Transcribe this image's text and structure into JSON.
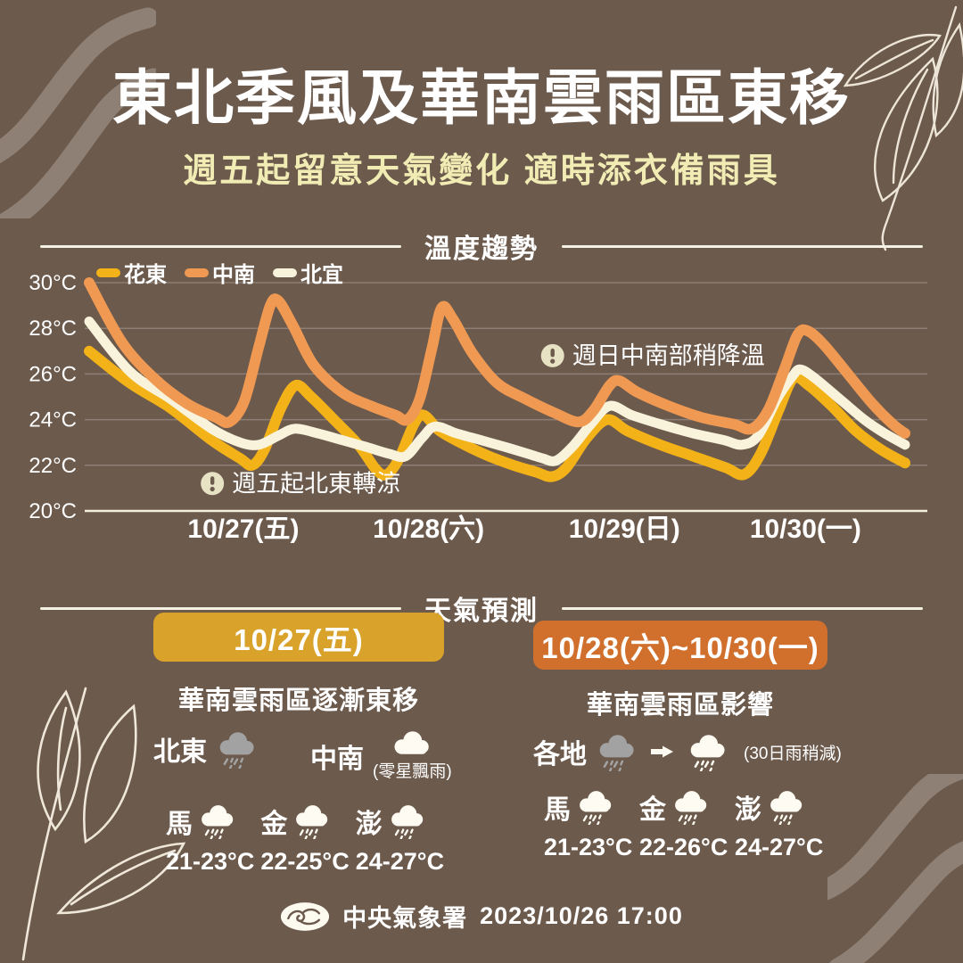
{
  "colors": {
    "background": "#6C5A4D",
    "title_text": "#FFFFFF",
    "subtitle_text": "#F1ECB4",
    "badge_friday": "#D8A22B",
    "badge_weekend": "#D0702C",
    "series_huadong": "#F3B218",
    "series_zhongnan": "#EF9952",
    "series_beiyi": "#F8F3DA",
    "cloud_gray": "#A2A2A2",
    "cloud_white": "#FDFBF2",
    "annotation_badge": "#E7E2C3"
  },
  "header": {
    "title": "東北季風及華南雲雨區東移",
    "subtitle": "週五起留意天氣變化 適時添衣備雨具"
  },
  "chart_data": {
    "type": "line",
    "title": "溫度趨勢",
    "ylabel": "°C",
    "ylim": [
      20,
      30
    ],
    "grid": true,
    "legend_position": "top-left",
    "yticks": [
      {
        "label": "30°C",
        "value": 30
      },
      {
        "label": "28°C",
        "value": 28
      },
      {
        "label": "26°C",
        "value": 26
      },
      {
        "label": "24°C",
        "value": 24
      },
      {
        "label": "22°C",
        "value": 22
      },
      {
        "label": "20°C",
        "value": 20
      }
    ],
    "x_labels": [
      {
        "label": "10/27(五)",
        "pos": 0.189
      },
      {
        "label": "10/28(六)",
        "pos": 0.416
      },
      {
        "label": "10/29(日)",
        "pos": 0.656
      },
      {
        "label": "10/30(一)",
        "pos": 0.878
      }
    ],
    "legend": [
      {
        "label": "花東",
        "color": "#F3B218"
      },
      {
        "label": "中南",
        "color": "#EF9952"
      },
      {
        "label": "北宜",
        "color": "#F8F3DA"
      }
    ],
    "series": [
      {
        "name": "花東",
        "color": "#F3B218",
        "width": 12,
        "points": [
          [
            0.0,
            27.0
          ],
          [
            0.05,
            25.6
          ],
          [
            0.1,
            24.5
          ],
          [
            0.15,
            23.1
          ],
          [
            0.185,
            22.3
          ],
          [
            0.2,
            22.0
          ],
          [
            0.215,
            22.7
          ],
          [
            0.235,
            24.5
          ],
          [
            0.253,
            25.5
          ],
          [
            0.272,
            25.0
          ],
          [
            0.3,
            24.0
          ],
          [
            0.33,
            22.9
          ],
          [
            0.352,
            21.8
          ],
          [
            0.365,
            21.6
          ],
          [
            0.38,
            22.3
          ],
          [
            0.398,
            23.8
          ],
          [
            0.41,
            24.2
          ],
          [
            0.43,
            23.5
          ],
          [
            0.46,
            22.9
          ],
          [
            0.49,
            22.4
          ],
          [
            0.52,
            22.0
          ],
          [
            0.548,
            21.7
          ],
          [
            0.567,
            21.5
          ],
          [
            0.585,
            21.9
          ],
          [
            0.61,
            23.2
          ],
          [
            0.635,
            24.0
          ],
          [
            0.66,
            23.5
          ],
          [
            0.7,
            22.9
          ],
          [
            0.74,
            22.4
          ],
          [
            0.78,
            21.9
          ],
          [
            0.803,
            21.6
          ],
          [
            0.823,
            22.5
          ],
          [
            0.845,
            24.4
          ],
          [
            0.863,
            25.8
          ],
          [
            0.882,
            25.5
          ],
          [
            0.91,
            24.6
          ],
          [
            0.94,
            23.5
          ],
          [
            0.97,
            22.7
          ],
          [
            1.0,
            22.1
          ]
        ]
      },
      {
        "name": "北宜",
        "color": "#F8F3DA",
        "width": 11,
        "points": [
          [
            0.0,
            28.3
          ],
          [
            0.05,
            26.1
          ],
          [
            0.1,
            24.9
          ],
          [
            0.15,
            23.6
          ],
          [
            0.185,
            23.0
          ],
          [
            0.208,
            22.9
          ],
          [
            0.232,
            23.3
          ],
          [
            0.252,
            23.6
          ],
          [
            0.28,
            23.4
          ],
          [
            0.31,
            23.1
          ],
          [
            0.34,
            22.8
          ],
          [
            0.368,
            22.5
          ],
          [
            0.388,
            22.4
          ],
          [
            0.408,
            23.2
          ],
          [
            0.424,
            23.7
          ],
          [
            0.45,
            23.4
          ],
          [
            0.48,
            23.1
          ],
          [
            0.51,
            22.8
          ],
          [
            0.538,
            22.5
          ],
          [
            0.556,
            22.3
          ],
          [
            0.572,
            22.2
          ],
          [
            0.592,
            22.8
          ],
          [
            0.615,
            23.8
          ],
          [
            0.638,
            24.6
          ],
          [
            0.665,
            24.2
          ],
          [
            0.7,
            23.8
          ],
          [
            0.74,
            23.4
          ],
          [
            0.778,
            23.1
          ],
          [
            0.8,
            22.9
          ],
          [
            0.82,
            23.3
          ],
          [
            0.843,
            24.9
          ],
          [
            0.862,
            25.9
          ],
          [
            0.872,
            26.2
          ],
          [
            0.89,
            25.8
          ],
          [
            0.92,
            24.9
          ],
          [
            0.95,
            24.0
          ],
          [
            0.975,
            23.4
          ],
          [
            1.0,
            22.9
          ]
        ]
      },
      {
        "name": "中南",
        "color": "#EF9952",
        "width": 12,
        "points": [
          [
            0.0,
            30.0
          ],
          [
            0.04,
            27.4
          ],
          [
            0.08,
            25.8
          ],
          [
            0.12,
            24.7
          ],
          [
            0.155,
            24.1
          ],
          [
            0.172,
            23.9
          ],
          [
            0.19,
            24.8
          ],
          [
            0.208,
            27.2
          ],
          [
            0.222,
            29.0
          ],
          [
            0.232,
            29.2
          ],
          [
            0.25,
            28.1
          ],
          [
            0.275,
            26.4
          ],
          [
            0.31,
            25.2
          ],
          [
            0.345,
            24.6
          ],
          [
            0.375,
            24.2
          ],
          [
            0.39,
            24.0
          ],
          [
            0.405,
            24.9
          ],
          [
            0.42,
            27.1
          ],
          [
            0.432,
            28.9
          ],
          [
            0.446,
            28.4
          ],
          [
            0.47,
            26.9
          ],
          [
            0.5,
            25.6
          ],
          [
            0.535,
            24.9
          ],
          [
            0.57,
            24.3
          ],
          [
            0.6,
            23.9
          ],
          [
            0.618,
            24.4
          ],
          [
            0.638,
            25.5
          ],
          [
            0.65,
            25.7
          ],
          [
            0.672,
            25.2
          ],
          [
            0.71,
            24.6
          ],
          [
            0.75,
            24.1
          ],
          [
            0.79,
            23.8
          ],
          [
            0.812,
            23.6
          ],
          [
            0.832,
            24.4
          ],
          [
            0.852,
            26.2
          ],
          [
            0.868,
            27.7
          ],
          [
            0.88,
            27.9
          ],
          [
            0.9,
            27.3
          ],
          [
            0.93,
            26.0
          ],
          [
            0.96,
            24.7
          ],
          [
            0.985,
            23.8
          ],
          [
            1.0,
            23.4
          ]
        ]
      }
    ],
    "annotations": [
      {
        "text": "週五起北東轉涼",
        "x": 0.151,
        "temp": 21.2,
        "icon": "alert-circle"
      },
      {
        "text": "週日中南部稍降溫",
        "x": 0.568,
        "temp": 26.8,
        "icon": "alert-circle"
      }
    ]
  },
  "forecast": {
    "heading": "天氣預測",
    "columns": [
      {
        "badge": "10/27(五)",
        "badge_color": "#D8A22B",
        "headline": "華南雲雨區逐漸東移",
        "regions": [
          {
            "label": "北東",
            "icon": "rain-cloud-gray"
          },
          {
            "label": "中南",
            "icon": "cloud-white",
            "note": "(零星飄雨)"
          }
        ],
        "islands": [
          {
            "label": "馬",
            "icon": "rain-cloud-white",
            "temp": "21-23°C"
          },
          {
            "label": "金",
            "icon": "rain-cloud-white",
            "temp": "22-25°C"
          },
          {
            "label": "澎",
            "icon": "rain-cloud-white",
            "temp": "24-27°C"
          }
        ]
      },
      {
        "badge": "10/28(六)~10/30(一)",
        "badge_color": "#D0702C",
        "headline": "華南雲雨區影響",
        "regions": [
          {
            "label": "各地",
            "icon": "rain-cloud-gray",
            "arrow": "→",
            "icon2": "rain-cloud-white",
            "note": "(30日雨稍減)"
          }
        ],
        "islands": [
          {
            "label": "馬",
            "icon": "rain-cloud-white",
            "temp": "21-23°C"
          },
          {
            "label": "金",
            "icon": "rain-cloud-white",
            "temp": "22-26°C"
          },
          {
            "label": "澎",
            "icon": "rain-cloud-white",
            "temp": "24-27°C"
          }
        ]
      }
    ]
  },
  "footer": {
    "agency": "中央氣象署",
    "datetime": "2023/10/26 17:00"
  }
}
